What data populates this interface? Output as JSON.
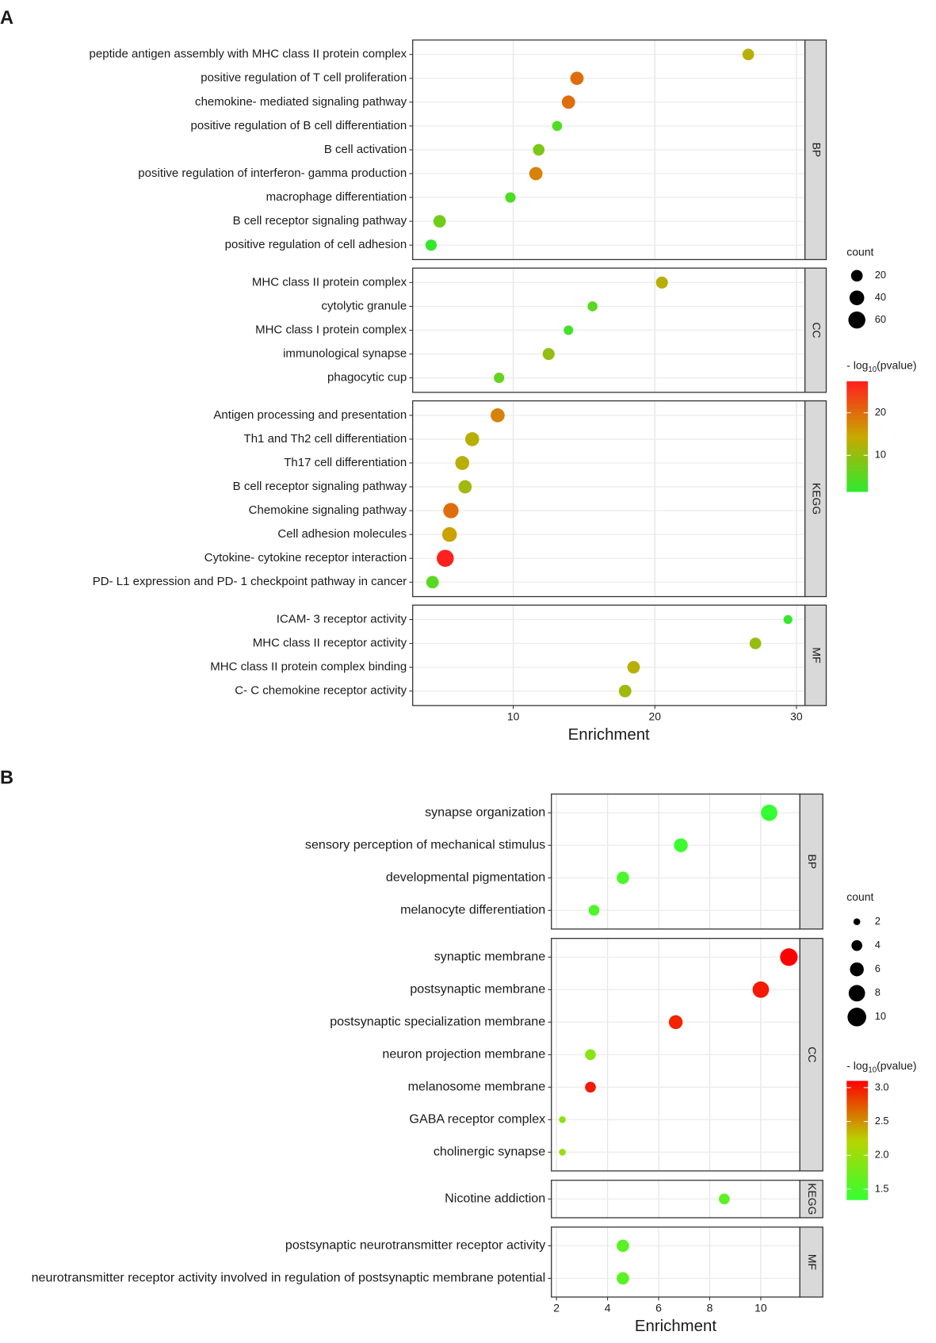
{
  "chart_data": [
    {
      "type": "dot",
      "panel_label": "A",
      "xlabel": "Enrichment",
      "xlim": [
        2.9,
        30.6
      ],
      "xticks": [
        10,
        20,
        30
      ],
      "grid": true,
      "facets": [
        {
          "name": "BP",
          "categories": [
            "peptide antigen assembly with MHC class II protein complex",
            "positive regulation of T cell proliferation",
            "chemokine- mediated signaling pathway",
            "positive regulation of B cell differentiation",
            "B cell activation",
            "positive regulation of interferon- gamma production",
            "macrophage differentiation",
            "B cell receptor signaling pathway",
            "positive regulation of cell adhesion"
          ],
          "values": [
            26.6,
            14.5,
            13.9,
            13.1,
            11.8,
            11.6,
            9.8,
            4.8,
            4.2
          ],
          "counts": [
            20,
            30,
            30,
            12,
            20,
            30,
            14,
            25,
            18
          ],
          "pvalues": [
            13,
            20,
            20,
            4,
            8,
            18,
            4,
            7,
            2
          ]
        },
        {
          "name": "CC",
          "categories": [
            "MHC class II protein complex",
            "cytolytic granule",
            "MHC class I protein complex",
            "immunological synapse",
            "phagocytic cup"
          ],
          "values": [
            20.5,
            15.6,
            13.9,
            12.5,
            9.0
          ],
          "counts": [
            22,
            12,
            10,
            22,
            14
          ],
          "pvalues": [
            13,
            5,
            3,
            10,
            6
          ]
        },
        {
          "name": "KEGG",
          "categories": [
            "Antigen processing and presentation",
            "Th1 and Th2 cell differentiation",
            "Th17 cell differentiation",
            "B cell receptor signaling pathway",
            "Chemokine signaling pathway",
            "Cell adhesion molecules",
            "Cytokine- cytokine receptor interaction",
            "PD- L1 expression and PD- 1 checkpoint pathway in cancer"
          ],
          "values": [
            8.9,
            7.1,
            6.4,
            6.6,
            5.6,
            5.5,
            5.2,
            4.3
          ],
          "counts": [
            35,
            35,
            35,
            30,
            45,
            40,
            60,
            25
          ],
          "pvalues": [
            18,
            13,
            13,
            11,
            20,
            15,
            27,
            5
          ]
        },
        {
          "name": "MF",
          "categories": [
            "ICAM- 3 receptor activity",
            "MHC class II receptor activity",
            "MHC class II protein complex binding",
            "C- C chemokine receptor activity"
          ],
          "values": [
            29.4,
            27.1,
            18.5,
            17.9
          ],
          "counts": [
            8,
            20,
            25,
            25
          ],
          "pvalues": [
            2,
            10,
            13,
            11
          ]
        }
      ],
      "size_legend": {
        "title": "count",
        "ticks": [
          20,
          40,
          60
        ]
      },
      "color_legend": {
        "title": [
          "- log",
          "10",
          "(pvalue)"
        ],
        "lim": [
          1.4,
          27.4
        ],
        "ticks": [
          10,
          20
        ],
        "colors": [
          "#2eea2e",
          "#c8a800",
          "#ff1e1e"
        ]
      }
    },
    {
      "type": "dot",
      "panel_label": "B",
      "xlabel": "Enrichment",
      "xlim": [
        1.8,
        11.53
      ],
      "xticks": [
        2,
        4,
        6,
        8,
        10
      ],
      "grid": true,
      "facets": [
        {
          "name": "BP",
          "categories": [
            "synapse organization",
            "sensory perception of mechanical stimulus",
            "developmental pigmentation",
            "melanocyte differentiation"
          ],
          "values": [
            10.33,
            6.87,
            4.6,
            3.47
          ],
          "counts": [
            8,
            6,
            5,
            4
          ],
          "pvalues": [
            1.35,
            1.4,
            1.5,
            1.5
          ]
        },
        {
          "name": "CC",
          "categories": [
            "synaptic membrane",
            "postsynaptic membrane",
            "postsynaptic specialization membrane",
            "neuron projection membrane",
            "melanosome membrane",
            "GABA receptor complex",
            "cholinergic synapse"
          ],
          "values": [
            11.1,
            10.0,
            6.67,
            3.33,
            3.33,
            2.23,
            2.23
          ],
          "counts": [
            9,
            8,
            6,
            4,
            4,
            2,
            2
          ],
          "pvalues": [
            3.1,
            3.0,
            2.95,
            1.9,
            3.0,
            1.9,
            2.0
          ]
        },
        {
          "name": "KEGG",
          "categories": [
            "Nicotine addiction"
          ],
          "values": [
            8.57
          ],
          "counts": [
            4
          ],
          "pvalues": [
            1.6
          ]
        },
        {
          "name": "MF",
          "categories": [
            "postsynaptic neurotransmitter receptor activity",
            "neurotransmitter receptor activity involved in regulation of postsynaptic membrane potential"
          ],
          "values": [
            4.6,
            4.6
          ],
          "counts": [
            5,
            5
          ],
          "pvalues": [
            1.6,
            1.6
          ]
        }
      ],
      "size_legend": {
        "title": "count",
        "ticks": [
          2,
          4,
          6,
          8,
          10
        ]
      },
      "color_legend": {
        "title": [
          "- log",
          "10",
          "(pvalue)"
        ],
        "lim": [
          1.34,
          3.1
        ],
        "ticks": [
          {
            "value": 3.0,
            "label": "3.0"
          },
          2.5,
          {
            "value": 2.0,
            "label": "2.0"
          },
          1.5
        ],
        "colors": [
          "#33ff33",
          "#b8d400",
          "#ff0000"
        ]
      }
    }
  ]
}
